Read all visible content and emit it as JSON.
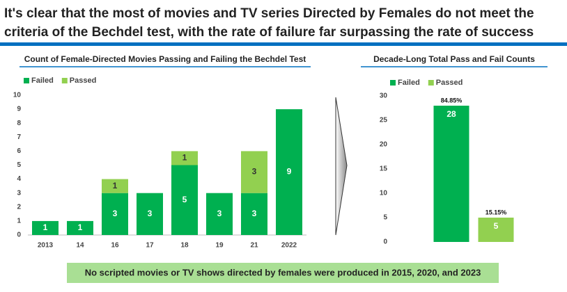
{
  "header": {
    "title_lines": [
      "It's clear that the most of movies and TV series Directed by Females do not meet the",
      "criteria of the Bechdel test, with the rate of failure far surpassing the rate of success"
    ]
  },
  "chart_data": [
    {
      "type": "stacked_bar",
      "title": "Count of Female-Directed Movies Passing and Failing the Bechdel Test",
      "categories": [
        "2013",
        "14",
        "16",
        "17",
        "18",
        "19",
        "21",
        "2022"
      ],
      "series": [
        {
          "name": "Failed",
          "color": "#00b050",
          "values": [
            1,
            1,
            3,
            3,
            5,
            3,
            3,
            9
          ]
        },
        {
          "name": "Passed",
          "color": "#92d050",
          "values": [
            null,
            null,
            1,
            null,
            1,
            null,
            3,
            null
          ]
        }
      ],
      "ylim": [
        0,
        10
      ],
      "yticks": [
        0,
        1,
        2,
        3,
        4,
        5,
        6,
        7,
        8,
        9,
        10
      ],
      "grid": false,
      "legend": "top-left"
    },
    {
      "type": "bar",
      "title": "Decade-Long Total Pass and Fail Counts",
      "series": [
        {
          "name": "Failed",
          "color": "#00b050",
          "values": [
            28
          ],
          "percent_labels": [
            "84.85%"
          ]
        },
        {
          "name": "Passed",
          "color": "#92d050",
          "values": [
            5
          ],
          "percent_labels": [
            "15.15%"
          ]
        }
      ],
      "ylim": [
        0,
        30
      ],
      "yticks": [
        0,
        5,
        10,
        15,
        20,
        25,
        30
      ],
      "grid": false,
      "legend": "top-left"
    }
  ],
  "footer": {
    "note": "No scripted movies or TV shows directed by females were produced in 2015, 2020, and 2023"
  }
}
